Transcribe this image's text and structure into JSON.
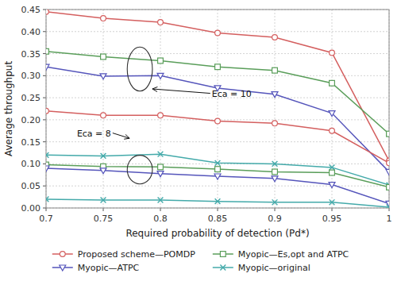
{
  "chart_data": {
    "type": "line",
    "xlabel": "Required probability of detection (Pd*)",
    "ylabel": "Average throughput",
    "x": [
      0.7,
      0.75,
      0.8,
      0.85,
      0.9,
      0.95,
      1.0
    ],
    "series": [
      {
        "name": "Proposed scheme—POMDP",
        "color": "#d45f5f",
        "marker": "circle",
        "values": [
          0.445,
          0.43,
          0.421,
          0.397,
          0.387,
          0.352,
          0.107
        ]
      },
      {
        "name": "Myopic—Es,opt and ATPC",
        "color": "#5a9e5a",
        "marker": "square",
        "values": [
          0.355,
          0.343,
          0.334,
          0.32,
          0.312,
          0.283,
          0.168
        ]
      },
      {
        "name": "Myopic—ATPC",
        "color": "#5555bb",
        "marker": "triangle-down",
        "values": [
          0.32,
          0.299,
          0.3,
          0.272,
          0.258,
          0.215,
          0.082
        ]
      },
      {
        "name": "Myopic—original",
        "color": "#44aaaa",
        "marker": "x",
        "values": [
          0.12,
          0.118,
          0.122,
          0.102,
          0.1,
          0.092,
          0.052
        ]
      },
      {
        "name": "Proposed scheme—POMDP",
        "color": "#d45f5f",
        "marker": "circle",
        "values": [
          0.22,
          0.21,
          0.21,
          0.197,
          0.192,
          0.175,
          0.102
        ]
      },
      {
        "name": "Myopic—Es,opt and ATPC",
        "color": "#5a9e5a",
        "marker": "square",
        "values": [
          0.098,
          0.094,
          0.093,
          0.088,
          0.082,
          0.08,
          0.047
        ]
      },
      {
        "name": "Myopic—ATPC",
        "color": "#5555bb",
        "marker": "triangle-down",
        "values": [
          0.09,
          0.085,
          0.078,
          0.072,
          0.067,
          0.053,
          0.01
        ]
      },
      {
        "name": "Myopic—original",
        "color": "#44aaaa",
        "marker": "x",
        "values": [
          0.02,
          0.018,
          0.018,
          0.015,
          0.013,
          0.013,
          0.002
        ]
      }
    ],
    "xlim": [
      0.7,
      1.0
    ],
    "ylim": [
      0,
      0.45
    ],
    "xticks": [
      0.7,
      0.75,
      0.8,
      0.85,
      0.9,
      0.95,
      1
    ],
    "yticks": [
      {
        "value": 0,
        "label": "0.00"
      },
      0.05,
      {
        "value": 0.1,
        "label": "0.10"
      },
      0.15,
      {
        "value": 0.2,
        "label": "0.20"
      },
      0.25,
      {
        "value": 0.3,
        "label": "0.30"
      },
      0.35,
      {
        "value": 0.4,
        "label": "0.40"
      },
      0.45
    ],
    "ellipses": [
      {
        "x": 0.782,
        "y": 0.315,
        "width": 0.022,
        "height": 0.1
      },
      {
        "x": 0.782,
        "y": 0.087,
        "width": 0.022,
        "height": 0.065
      }
    ],
    "annotations": [
      {
        "text": "Eca = 10",
        "xy": [
          0.793,
          0.27
        ],
        "xytext": [
          0.845,
          0.26
        ]
      },
      {
        "text": "Eca = 8",
        "xy": [
          0.773,
          0.158
        ],
        "xytext": [
          0.727,
          0.17
        ]
      }
    ],
    "grid": true,
    "legend": "bottom"
  }
}
